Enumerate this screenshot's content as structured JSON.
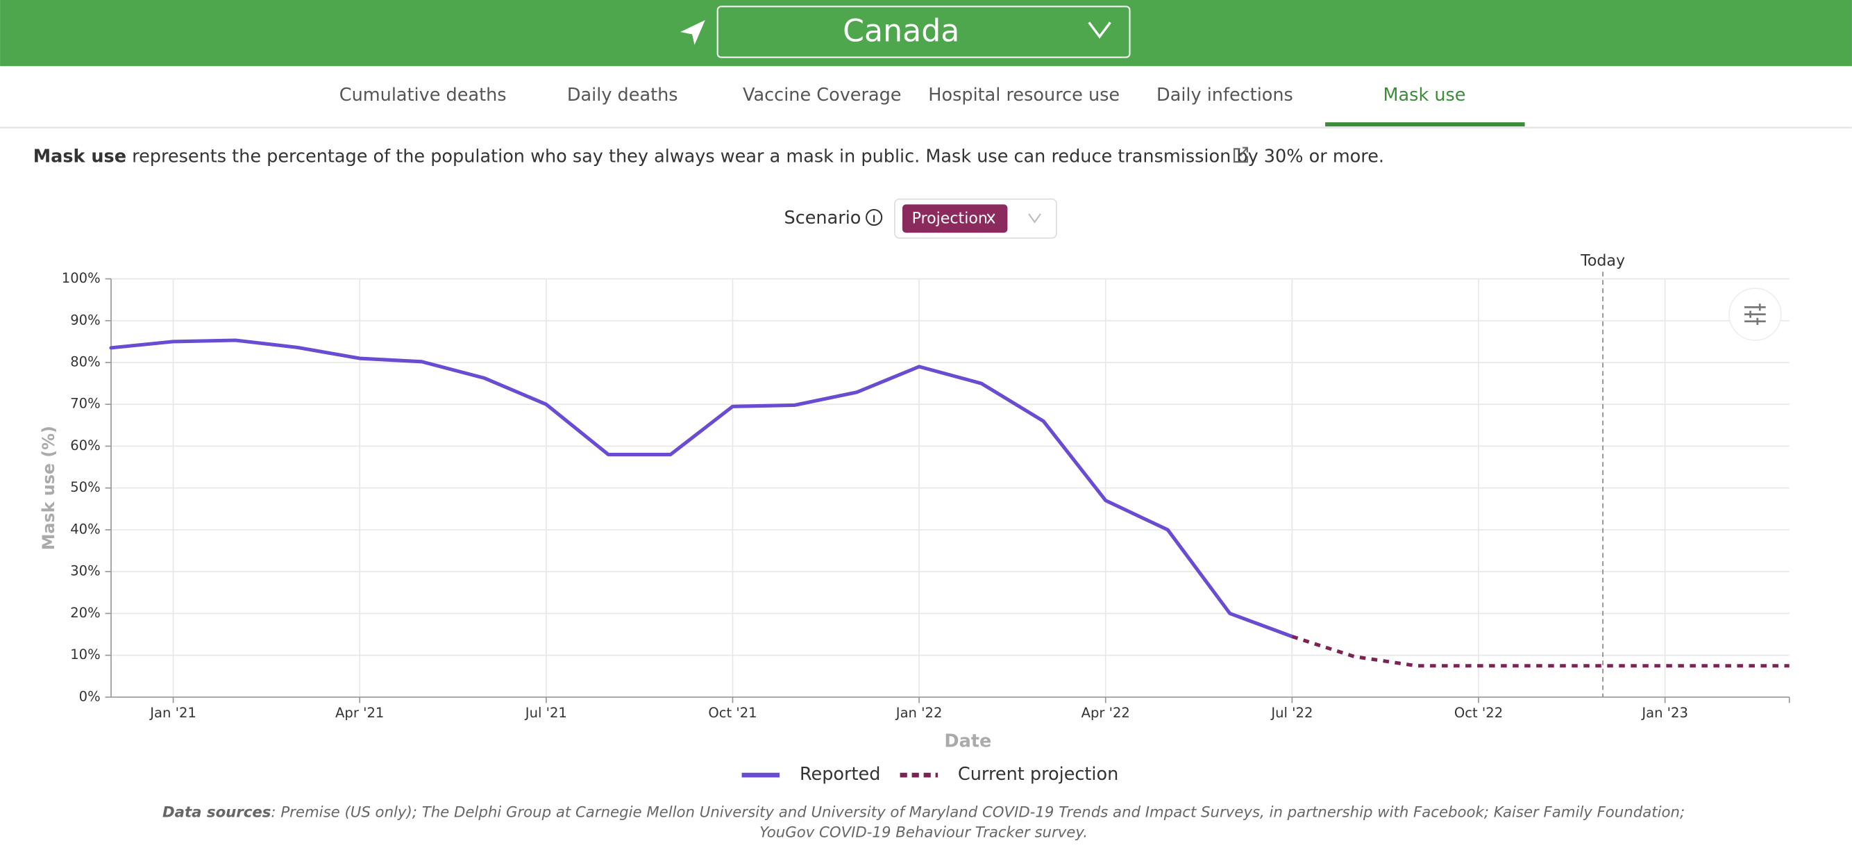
{
  "header": {
    "location": "Canada"
  },
  "tabs": [
    "Cumulative deaths",
    "Daily deaths",
    "Vaccine Coverage",
    "Hospital resource use",
    "Daily infections",
    "Mask use"
  ],
  "active_tab": 5,
  "description": {
    "term": "Mask use",
    "text": " represents the percentage of the population who say they always wear a mask in public. Mask use can reduce transmission by 30% or more."
  },
  "scenario": {
    "label": "Scenario",
    "chip": "Projection"
  },
  "chart_data": {
    "type": "line",
    "x_label": "Date",
    "y_label": "Mask use (%)",
    "x": [
      "2020-12",
      "2021-01",
      "2021-02",
      "2021-03",
      "2021-04",
      "2021-05",
      "2021-06",
      "2021-07",
      "2021-08",
      "2021-09",
      "2021-10",
      "2021-11",
      "2021-12",
      "2022-01",
      "2022-02",
      "2022-03",
      "2022-04",
      "2022-05",
      "2022-06",
      "2022-07",
      "2022-08",
      "2022-09",
      "2022-10",
      "2022-11",
      "2022-12",
      "2023-01",
      "2023-02",
      "2023-03"
    ],
    "series": [
      {
        "name": "Reported",
        "color": "#6a4cd2",
        "dashed": false,
        "values": [
          83.5,
          85,
          85.3,
          83.6,
          81,
          80.2,
          76.3,
          70,
          58,
          58,
          69.5,
          69.8,
          72.9,
          79,
          75,
          66,
          47,
          40,
          20,
          14.5,
          null,
          null,
          null,
          null,
          null,
          null,
          null,
          null
        ]
      },
      {
        "name": "Current projection",
        "color": "#7b2452",
        "dashed": true,
        "values": [
          null,
          null,
          null,
          null,
          null,
          null,
          null,
          null,
          null,
          null,
          null,
          null,
          null,
          null,
          null,
          null,
          null,
          null,
          null,
          14.5,
          9.7,
          7.5,
          7.5,
          7.5,
          7.5,
          7.5,
          7.5,
          7.5
        ]
      }
    ],
    "xlim": [
      "2020-12",
      "2023-03"
    ],
    "xticks": [
      {
        "value": "2021-01",
        "label": "Jan '21"
      },
      {
        "value": "2021-04",
        "label": "Apr '21"
      },
      {
        "value": "2021-07",
        "label": "Jul '21"
      },
      {
        "value": "2021-10",
        "label": "Oct '21"
      },
      {
        "value": "2022-01",
        "label": "Jan '22"
      },
      {
        "value": "2022-04",
        "label": "Apr '22"
      },
      {
        "value": "2022-07",
        "label": "Jul '22"
      },
      {
        "value": "2022-10",
        "label": "Oct '22"
      },
      {
        "value": "2023-01",
        "label": "Jan '23"
      }
    ],
    "ylim": [
      0,
      100
    ],
    "yticks": [
      {
        "value": 0,
        "label": "0%"
      },
      {
        "value": 10,
        "label": "10%"
      },
      {
        "value": 20,
        "label": "20%"
      },
      {
        "value": 30,
        "label": "30%"
      },
      {
        "value": 40,
        "label": "40%"
      },
      {
        "value": 50,
        "label": "50%"
      },
      {
        "value": 60,
        "label": "60%"
      },
      {
        "value": 70,
        "label": "70%"
      },
      {
        "value": 80,
        "label": "80%"
      },
      {
        "value": 90,
        "label": "90%"
      },
      {
        "value": 100,
        "label": "100%"
      }
    ],
    "grid": true,
    "annotation": {
      "x": "2022-12",
      "text": "Today"
    }
  },
  "sources": {
    "label": "Data sources",
    "line1": ": Premise (US only); The Delphi Group at Carnegie Mellon University and University of Maryland COVID-19 Trends and Impact Surveys, in partnership with Facebook; Kaiser Family Foundation;",
    "line2": "YouGov COVID-19 Behaviour Tracker survey."
  }
}
